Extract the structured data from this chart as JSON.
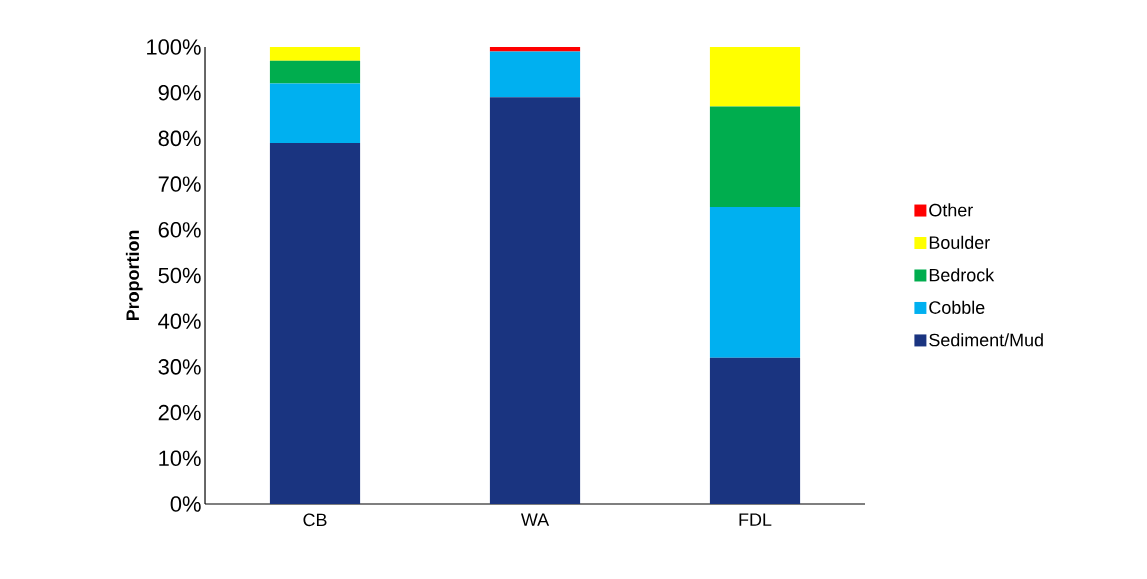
{
  "chart_data": {
    "type": "bar",
    "stacked": true,
    "ylabel": "Proportion",
    "categories": [
      "CB",
      "WA",
      "FDL"
    ],
    "series": [
      {
        "name": "Sediment/Mud",
        "color": "#1a3480",
        "values": [
          79,
          89,
          32
        ]
      },
      {
        "name": "Cobble",
        "color": "#00b0f0",
        "values": [
          13,
          10,
          33
        ]
      },
      {
        "name": "Bedrock",
        "color": "#00ad4e",
        "values": [
          5,
          0,
          22
        ]
      },
      {
        "name": "Boulder",
        "color": "#ffff00",
        "values": [
          3,
          0,
          13
        ]
      },
      {
        "name": "Other",
        "color": "#ff0000",
        "values": [
          0,
          1,
          0
        ]
      }
    ],
    "ylim": [
      0,
      100
    ],
    "yticks": [
      {
        "value": 0,
        "label": "0%"
      },
      {
        "value": 10,
        "label": "10%"
      },
      {
        "value": 20,
        "label": "20%"
      },
      {
        "value": 30,
        "label": "30%"
      },
      {
        "value": 40,
        "label": "40%"
      },
      {
        "value": 50,
        "label": "50%"
      },
      {
        "value": 60,
        "label": "60%"
      },
      {
        "value": 70,
        "label": "70%"
      },
      {
        "value": 80,
        "label": "80%"
      },
      {
        "value": 90,
        "label": "90%"
      },
      {
        "value": 100,
        "label": "100%"
      }
    ],
    "legend": "right",
    "grid": false
  }
}
